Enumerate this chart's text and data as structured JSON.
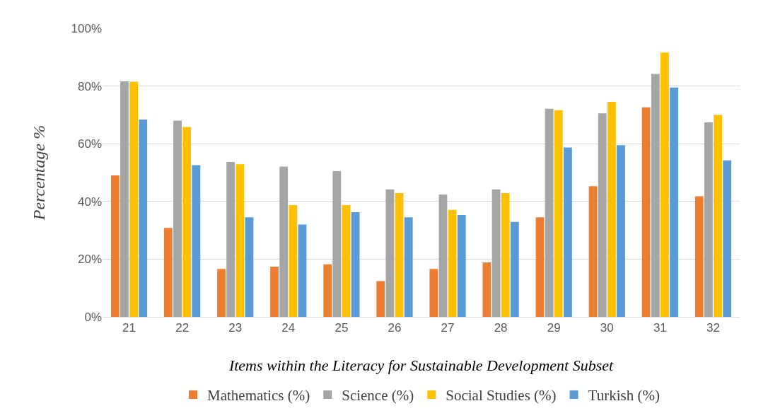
{
  "chart_data": {
    "type": "bar",
    "xlabel": "Items within the Literacy for Sustainable Development Subset",
    "ylabel": "Percentage %",
    "categories": [
      "21",
      "22",
      "23",
      "24",
      "25",
      "26",
      "27",
      "28",
      "29",
      "30",
      "31",
      "32"
    ],
    "series": [
      {
        "name": "Mathematics (%)",
        "color": "#ed7d31",
        "values": [
          49,
          30.8,
          16.6,
          17.4,
          18.2,
          12.4,
          16.6,
          18.9,
          34.5,
          45.3,
          72.6,
          41.8
        ]
      },
      {
        "name": "Science (%)",
        "color": "#a5a5a5",
        "values": [
          81.6,
          68,
          53.7,
          52.1,
          50.5,
          44.2,
          42.4,
          44.2,
          72.1,
          70.5,
          84.2,
          67.4
        ]
      },
      {
        "name": "Social Studies (%)",
        "color": "#ffc000",
        "values": [
          81.5,
          65.8,
          52.9,
          38.7,
          38.7,
          42.9,
          37.1,
          42.9,
          71.6,
          74.5,
          91.6,
          70
        ]
      },
      {
        "name": "Turkish (%)",
        "color": "#5b9bd5",
        "values": [
          68.4,
          52.6,
          34.5,
          32,
          36.3,
          34.5,
          35.3,
          32.9,
          58.7,
          59.5,
          79.5,
          54.2
        ]
      }
    ],
    "ylim": [
      0,
      100
    ],
    "yticks": [
      {
        "value": 0,
        "label": "0%"
      },
      {
        "value": 20,
        "label": "20%"
      },
      {
        "value": 40,
        "label": "40%"
      },
      {
        "value": 60,
        "label": "60%"
      },
      {
        "value": 80,
        "label": "80%"
      },
      {
        "value": 100,
        "label": "100%"
      }
    ],
    "grid": "y",
    "legend": "bottom"
  }
}
